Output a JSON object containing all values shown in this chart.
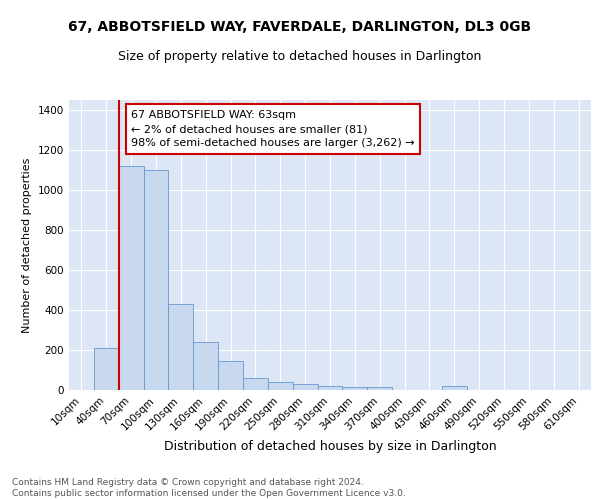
{
  "title1": "67, ABBOTSFIELD WAY, FAVERDALE, DARLINGTON, DL3 0GB",
  "title2": "Size of property relative to detached houses in Darlington",
  "xlabel": "Distribution of detached houses by size in Darlington",
  "ylabel": "Number of detached properties",
  "bin_labels": [
    "10sqm",
    "40sqm",
    "70sqm",
    "100sqm",
    "130sqm",
    "160sqm",
    "190sqm",
    "220sqm",
    "250sqm",
    "280sqm",
    "310sqm",
    "340sqm",
    "370sqm",
    "400sqm",
    "430sqm",
    "460sqm",
    "490sqm",
    "520sqm",
    "550sqm",
    "580sqm",
    "610sqm"
  ],
  "bar_values": [
    0,
    210,
    1120,
    1100,
    430,
    238,
    145,
    60,
    42,
    30,
    20,
    13,
    13,
    0,
    0,
    18,
    0,
    0,
    0,
    0,
    0
  ],
  "bar_color": "#c8d9ef",
  "bar_edge_color": "#6699cc",
  "vline_color": "#cc0000",
  "annotation_text": "67 ABBOTSFIELD WAY: 63sqm\n← 2% of detached houses are smaller (81)\n98% of semi-detached houses are larger (3,262) →",
  "annotation_box_color": "#ffffff",
  "annotation_box_edge_color": "#cc0000",
  "ylim": [
    0,
    1450
  ],
  "yticks": [
    0,
    200,
    400,
    600,
    800,
    1000,
    1200,
    1400
  ],
  "background_color": "#dce6f5",
  "footer_text": "Contains HM Land Registry data © Crown copyright and database right 2024.\nContains public sector information licensed under the Open Government Licence v3.0.",
  "title1_fontsize": 10,
  "title2_fontsize": 9,
  "xlabel_fontsize": 9,
  "ylabel_fontsize": 8,
  "tick_fontsize": 7.5,
  "annotation_fontsize": 8,
  "footer_fontsize": 6.5
}
